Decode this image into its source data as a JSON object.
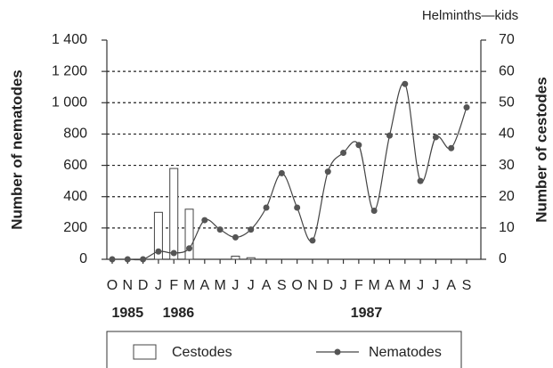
{
  "chart_data": {
    "type": "bar_line",
    "title": "Helminths—kids",
    "y_label": "Number of nematodes",
    "y2_label": "Number of cestodes",
    "categories": [
      "O",
      "N",
      "D",
      "J",
      "F",
      "M",
      "A",
      "M",
      "J",
      "J",
      "A",
      "S",
      "O",
      "N",
      "D",
      "J",
      "F",
      "M",
      "A",
      "M",
      "J",
      "J",
      "A",
      "S"
    ],
    "years": [
      "1985",
      "1986",
      "1987"
    ],
    "series": [
      {
        "name": "Cestodes",
        "type": "bar",
        "axis": "y2",
        "color": "#ffffff",
        "values": [
          0,
          0,
          0,
          15,
          29,
          16,
          0,
          0,
          1,
          0.5,
          0,
          0,
          0,
          0,
          0,
          0,
          0,
          0,
          0,
          0,
          0,
          0,
          0,
          0
        ]
      },
      {
        "name": "Nematodes",
        "type": "line",
        "axis": "y",
        "color": "#555555",
        "values": [
          0,
          0,
          0,
          50,
          40,
          70,
          250,
          190,
          140,
          190,
          330,
          550,
          330,
          120,
          560,
          680,
          730,
          310,
          790,
          1120,
          500,
          780,
          710,
          970
        ]
      }
    ],
    "ylim": [
      0,
      1400
    ],
    "yticks": [
      0,
      200,
      400,
      600,
      800,
      {
        "value": 1000,
        "label": "1 000"
      },
      {
        "value": 1200,
        "label": "1 200"
      },
      {
        "value": 1400,
        "label": "1 400"
      }
    ],
    "y2lim": [
      0,
      70
    ],
    "y2ticks": [
      0,
      10,
      20,
      30,
      40,
      50,
      60,
      70
    ],
    "grid": true,
    "legend": "bottom"
  }
}
